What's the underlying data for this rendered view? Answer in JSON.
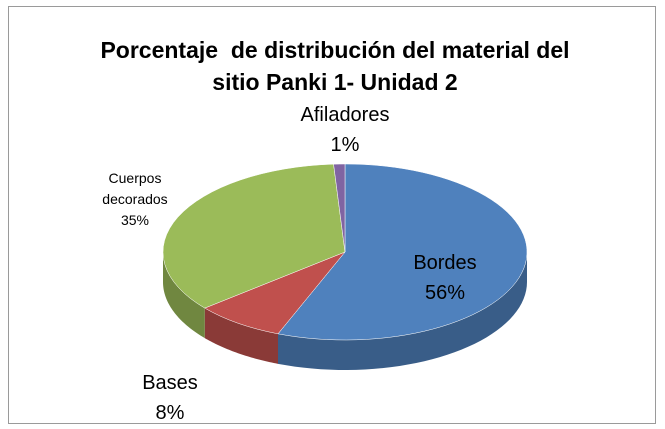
{
  "chart_data": {
    "type": "pie",
    "title": "Porcentaje  de distribución del material del sitio Panki 1- Unidad 2",
    "categories": [
      "Bordes",
      "Bases",
      "Cuerpos decorados",
      "Afiladores"
    ],
    "values": [
      56,
      8,
      35,
      1
    ],
    "value_labels": [
      "56%",
      "8%",
      "35%",
      "1%"
    ],
    "colors": [
      "#4f81bd",
      "#c0504d",
      "#9bbb59",
      "#8064a2"
    ]
  }
}
